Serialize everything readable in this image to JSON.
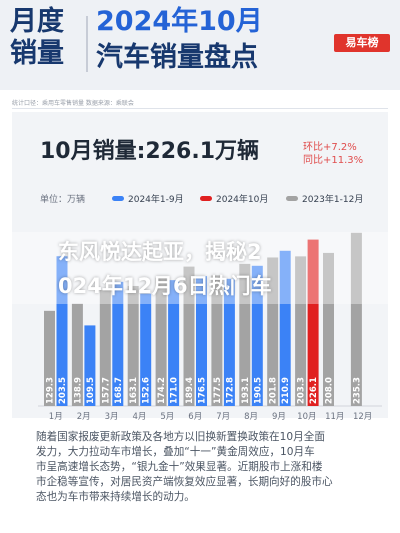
{
  "header": {
    "left_line1": "月度",
    "left_line2": "销量",
    "right_line1": "2024年10月",
    "right_line2": "汽车销量盘点",
    "logo": "易车榜"
  },
  "source_note": "统计口径：乘用车零售销量 数据来源：乘联会",
  "chart_data": {
    "type": "bar",
    "title": "10月销量:226.1万辆",
    "mom": "环比+7.2%",
    "yoy": "同比+11.3%",
    "unit": "单位：万辆",
    "categories": [
      "1月",
      "2月",
      "3月",
      "4月",
      "5月",
      "6月",
      "7月",
      "8月",
      "9月",
      "10月",
      "11月",
      "12月"
    ],
    "series": [
      {
        "name": "2024年1-9月",
        "color": "#3b82f6",
        "values": [
          203.5,
          109.5,
          168.7,
          152.6,
          171.0,
          176.5,
          172.8,
          190.5,
          210.9,
          null,
          null,
          null
        ]
      },
      {
        "name": "2024年10月",
        "color": "#e02020",
        "values": [
          null,
          null,
          null,
          null,
          null,
          null,
          null,
          null,
          null,
          226.1,
          null,
          null
        ]
      },
      {
        "name": "2023年1-12月",
        "color": "#a3a3a3",
        "values": [
          129.3,
          138.9,
          157.7,
          163.1,
          174.2,
          189.4,
          177.5,
          193.1,
          201.8,
          203.3,
          208.0,
          235.3
        ]
      }
    ],
    "ylim": [
      0,
      250
    ]
  },
  "overlay": {
    "line1": "东风悦达起亚，揭秘2",
    "line2": "024年12月6日热门车"
  },
  "paragraph": [
    "随着国家报废更新政策及各地方以旧换新置换政策在10月全面",
    "发力，大力拉动车市增长，叠加“十一”黄金周效应，10月车",
    "市呈高速增长态势，“银九金十”效果显著。近期股市上涨和楼",
    "市企稳等宣传，对居民资产端恢复效应显著，长期向好的股市心",
    "态也为车市带来持续增长的动力。"
  ]
}
